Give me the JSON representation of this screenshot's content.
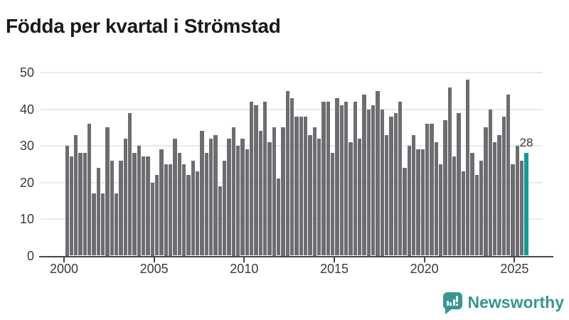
{
  "title": "Födda per kvartal i Strömstad",
  "chart_data": {
    "type": "bar",
    "title": "Födda per kvartal i Strömstad",
    "frequency": "quarterly",
    "x_start": "2000 Q1",
    "x_end": "2025 Q3",
    "x_tick_labels": [
      "2000",
      "2005",
      "2010",
      "2015",
      "2020",
      "2025"
    ],
    "y_ticks": [
      0,
      10,
      20,
      30,
      40,
      50
    ],
    "ylim": [
      0,
      50
    ],
    "grid": true,
    "legend": "none",
    "series": [
      {
        "name": "Födda",
        "values": [
          30,
          27,
          33,
          28,
          28,
          36,
          17,
          24,
          17,
          35,
          26,
          17,
          26,
          32,
          39,
          28,
          30,
          27,
          27,
          20,
          22,
          29,
          25,
          25,
          32,
          28,
          25,
          22,
          26,
          23,
          34,
          28,
          32,
          33,
          19,
          26,
          32,
          35,
          30,
          32,
          29,
          42,
          41,
          34,
          42,
          31,
          35,
          21,
          35,
          45,
          43,
          38,
          38,
          38,
          33,
          35,
          32,
          42,
          42,
          28,
          43,
          41,
          42,
          31,
          42,
          32,
          44,
          40,
          41,
          45,
          40,
          33,
          38,
          39,
          42,
          24,
          30,
          33,
          29,
          29,
          36,
          36,
          31,
          25,
          37,
          46,
          27,
          39,
          23,
          48,
          28,
          22,
          26,
          35,
          40,
          31,
          33,
          38,
          44,
          25,
          30,
          26,
          28
        ]
      }
    ],
    "highlight_index": 102,
    "highlight_label": "28"
  },
  "footer": {
    "brand": "Newsworthy"
  },
  "colors": {
    "bar": "#6d6d71",
    "highlight": "#0d9e95",
    "logo": "#35978f",
    "axis": "#47474b",
    "grid": "#e9e9e9",
    "title_text": "#1a1a1a",
    "axis_text": "#3a3a3e",
    "label_text": "#333333"
  }
}
